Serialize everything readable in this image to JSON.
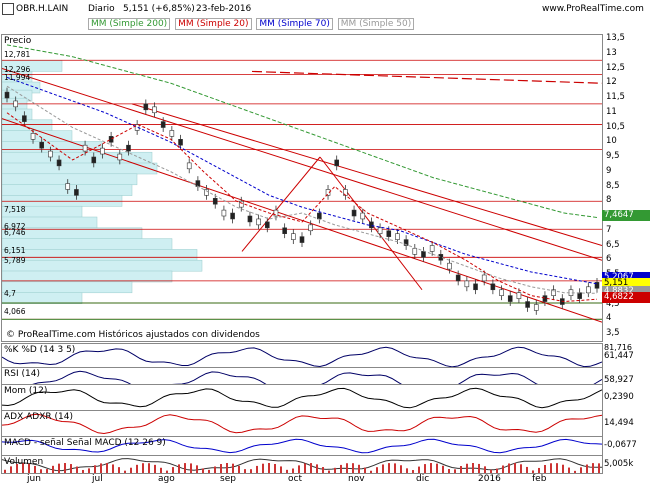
{
  "header": {
    "symbol": "OBR.H.LAIN",
    "period": "Diario",
    "last": "5,151 (+6,85%)",
    "date": "23-feb-2016",
    "brand": "www.ProRealTime.com"
  },
  "legend": {
    "ma200": "MM (Simple 200)",
    "ma20": "MM (Simple 20)",
    "ma70": "MM (Simple 70)",
    "ma50": "MM (Simple 50)"
  },
  "colors": {
    "ma200": "#339933",
    "ma20": "#cc0000",
    "ma70": "#0000cc",
    "ma50": "#999999",
    "level": "#cc0000",
    "volprofile": "#cfeff2"
  },
  "price_pane": {
    "label": "Precio",
    "footer": "© ProRealTime.com  Históricos ajustados con dividendos",
    "right_labels": [
      "13,5",
      "13",
      "12,5",
      "12",
      "11,5",
      "11",
      "10,5",
      "10",
      "9,5",
      "9",
      "8,5",
      "8",
      "7,5",
      "7",
      "6,5",
      "6",
      "5,5",
      "5",
      "4,5",
      "4",
      "3,5"
    ],
    "left_levels": [
      "12,781",
      "12,296",
      "11,994",
      "7,518",
      "6,972",
      "6,746",
      "6,151",
      "5,789",
      "4,7",
      "4,066"
    ],
    "tags": {
      "ma200": "7,4647",
      "ma20": "4,6822",
      "last": "5,151",
      "ma70": "5,2067",
      "ma50": "4,8832"
    }
  },
  "indicators": [
    {
      "label": "%K  %D (14 3 5)",
      "value": "61,447",
      "top": "81,716"
    },
    {
      "label": "RSI (14)",
      "value": "58,927"
    },
    {
      "label": "Mom (12)",
      "value": "0,2390"
    },
    {
      "label": "ADX  ADXR (14)",
      "value": "14,494"
    },
    {
      "label": "MACD - señal  Señal  MACD (12 26 9)",
      "value": "-0,0677"
    },
    {
      "label": "Volumen",
      "value": "5,005k"
    }
  ],
  "x_labels": [
    "jun",
    "jul",
    "ago",
    "sep",
    "oct",
    "nov",
    "dic",
    "2016",
    "feb"
  ]
}
